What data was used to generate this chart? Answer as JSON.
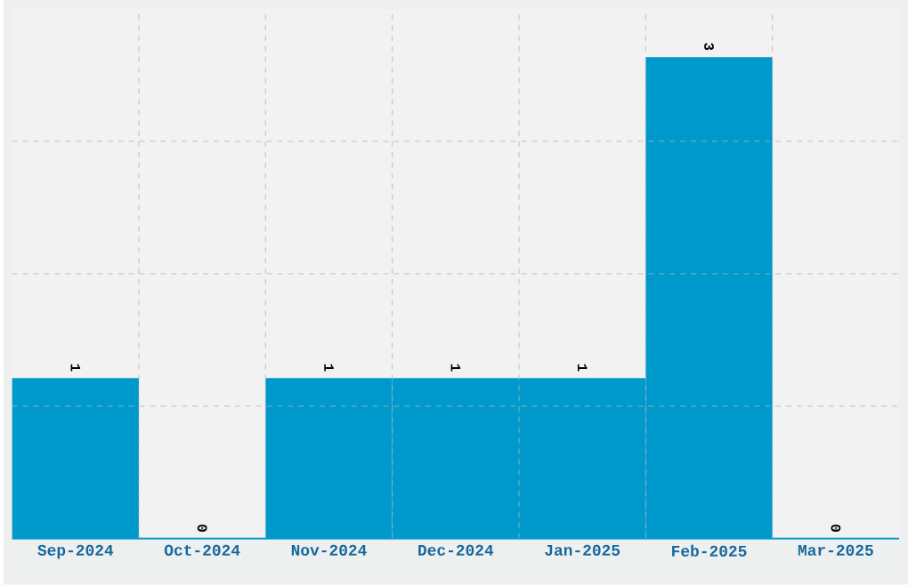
{
  "chart_data": {
    "type": "bar",
    "categories": [
      "Sep-2024",
      "Oct-2024",
      "Nov-2024",
      "Dec-2024",
      "Jan-2025",
      "Feb-2025",
      "Mar-2025"
    ],
    "values": [
      1,
      0,
      1,
      1,
      1,
      3,
      0
    ],
    "color": "#0099cc",
    "ylim": [
      0,
      3.3
    ],
    "yticks": [
      {
        "value": 0.825,
        "label": null
      },
      {
        "value": 1.65,
        "label": null
      },
      {
        "value": 2.475,
        "label": null
      }
    ],
    "grid": true,
    "data_labels": true,
    "tick_labels": "x"
  }
}
